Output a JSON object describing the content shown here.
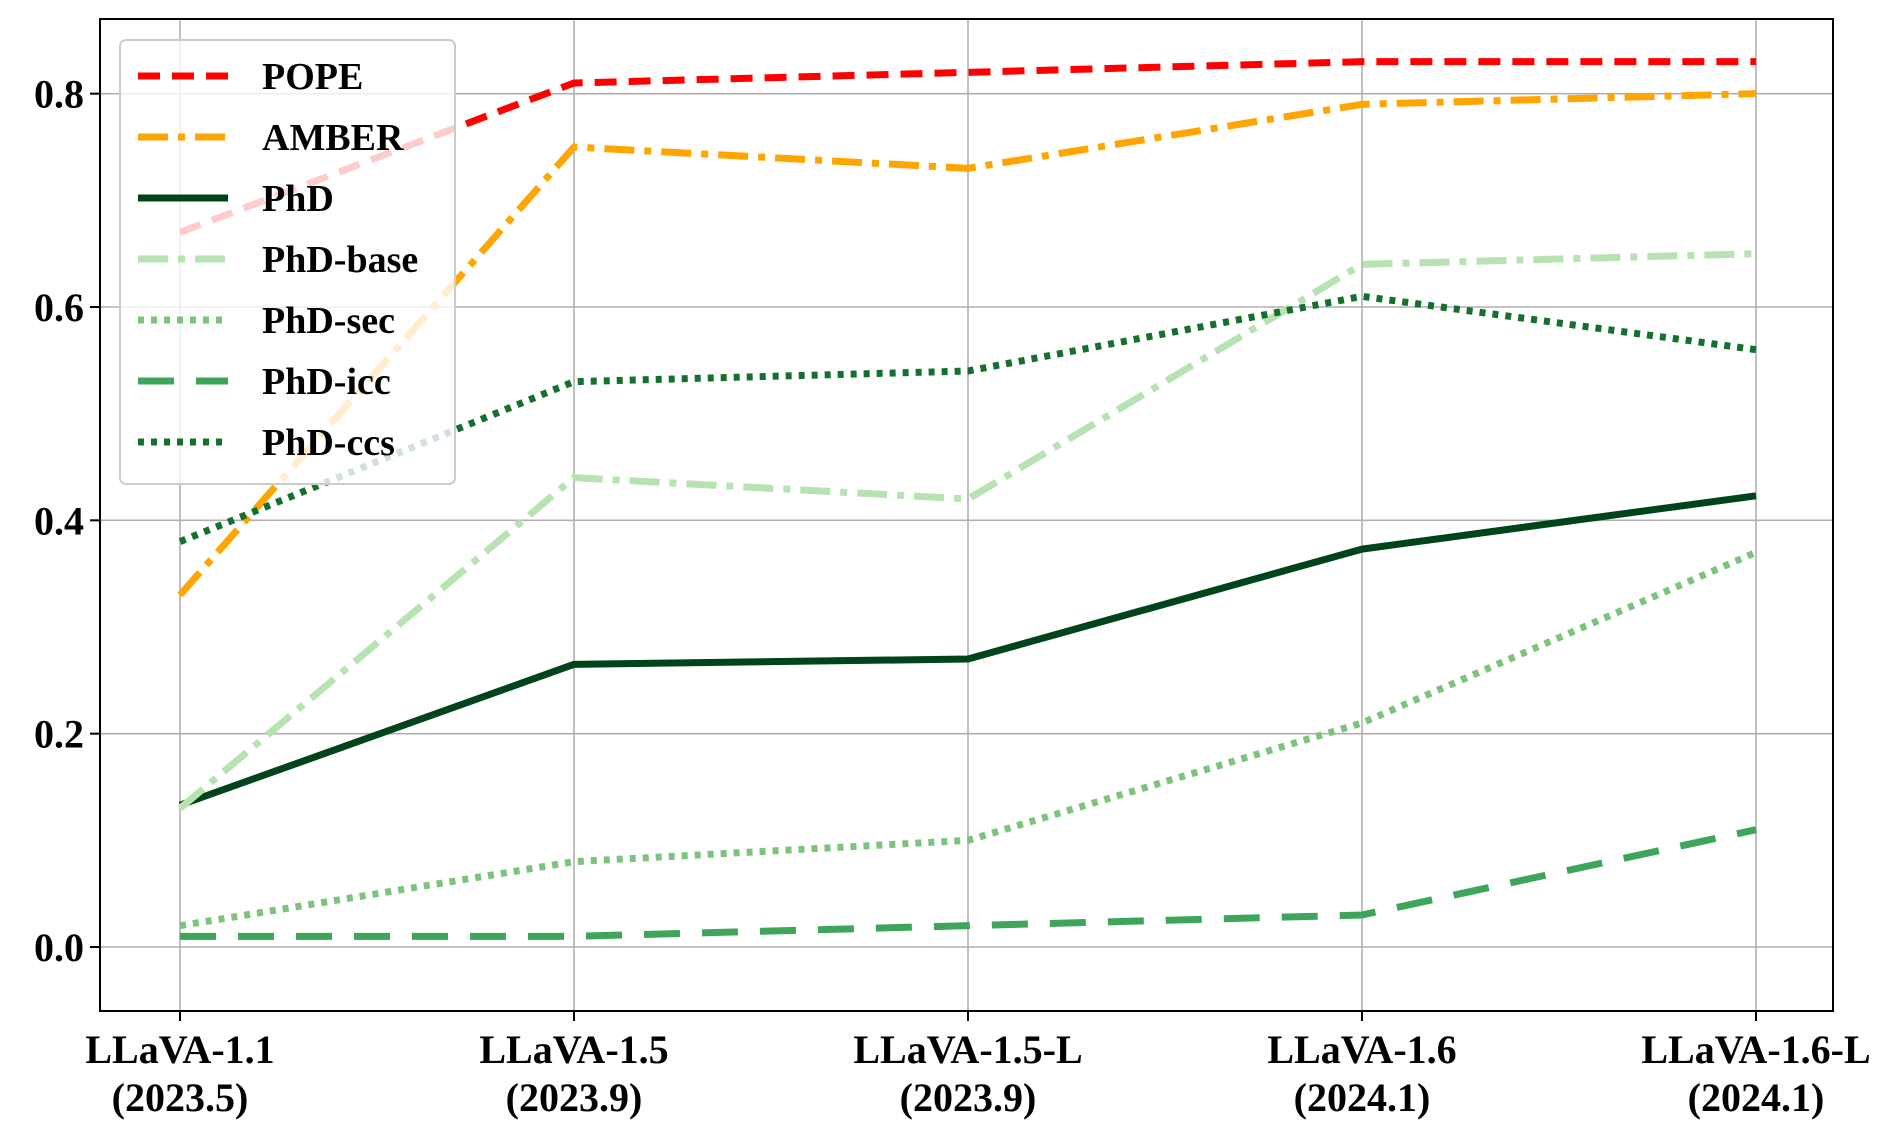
{
  "chart_data": {
    "type": "line",
    "title": "",
    "xlabel": "",
    "ylabel": "",
    "categories": [
      [
        "LLaVA-1.1",
        "(2023.5)"
      ],
      [
        "LLaVA-1.5",
        "(2023.9)"
      ],
      [
        "LLaVA-1.5-L",
        "(2023.9)"
      ],
      [
        "LLaVA-1.6",
        "(2024.1)"
      ],
      [
        "LLaVA-1.6-L",
        "(2024.1)"
      ]
    ],
    "ylim": [
      -0.06,
      0.87
    ],
    "yticks": [
      0.0,
      0.2,
      0.4,
      0.6,
      0.8
    ],
    "ytick_labels": [
      "0.0",
      "0.2",
      "0.4",
      "0.6",
      "0.8"
    ],
    "grid": true,
    "legend_position": "upper-left",
    "series": [
      {
        "name": "POPE",
        "color": "#ff0000",
        "style": "dashed",
        "values": [
          0.67,
          0.81,
          0.82,
          0.83,
          0.83
        ]
      },
      {
        "name": "AMBER",
        "color": "#ffa500",
        "style": "dashdot",
        "values": [
          0.33,
          0.75,
          0.73,
          0.79,
          0.8
        ]
      },
      {
        "name": "PhD",
        "color": "#00441b",
        "style": "solid",
        "values": [
          0.133,
          0.265,
          0.27,
          0.373,
          0.423
        ]
      },
      {
        "name": "PhD-base",
        "color": "#b7e2b1",
        "style": "dashdot",
        "values": [
          0.13,
          0.44,
          0.42,
          0.64,
          0.65
        ]
      },
      {
        "name": "PhD-sec",
        "color": "#7cc47d",
        "style": "dotted",
        "values": [
          0.02,
          0.08,
          0.1,
          0.21,
          0.37
        ]
      },
      {
        "name": "PhD-icc",
        "color": "#3fa55a",
        "style": "longdash",
        "values": [
          0.01,
          0.01,
          0.02,
          0.03,
          0.11
        ]
      },
      {
        "name": "PhD-ccs",
        "color": "#15702e",
        "style": "dotted",
        "values": [
          0.38,
          0.53,
          0.54,
          0.61,
          0.56
        ]
      }
    ]
  }
}
